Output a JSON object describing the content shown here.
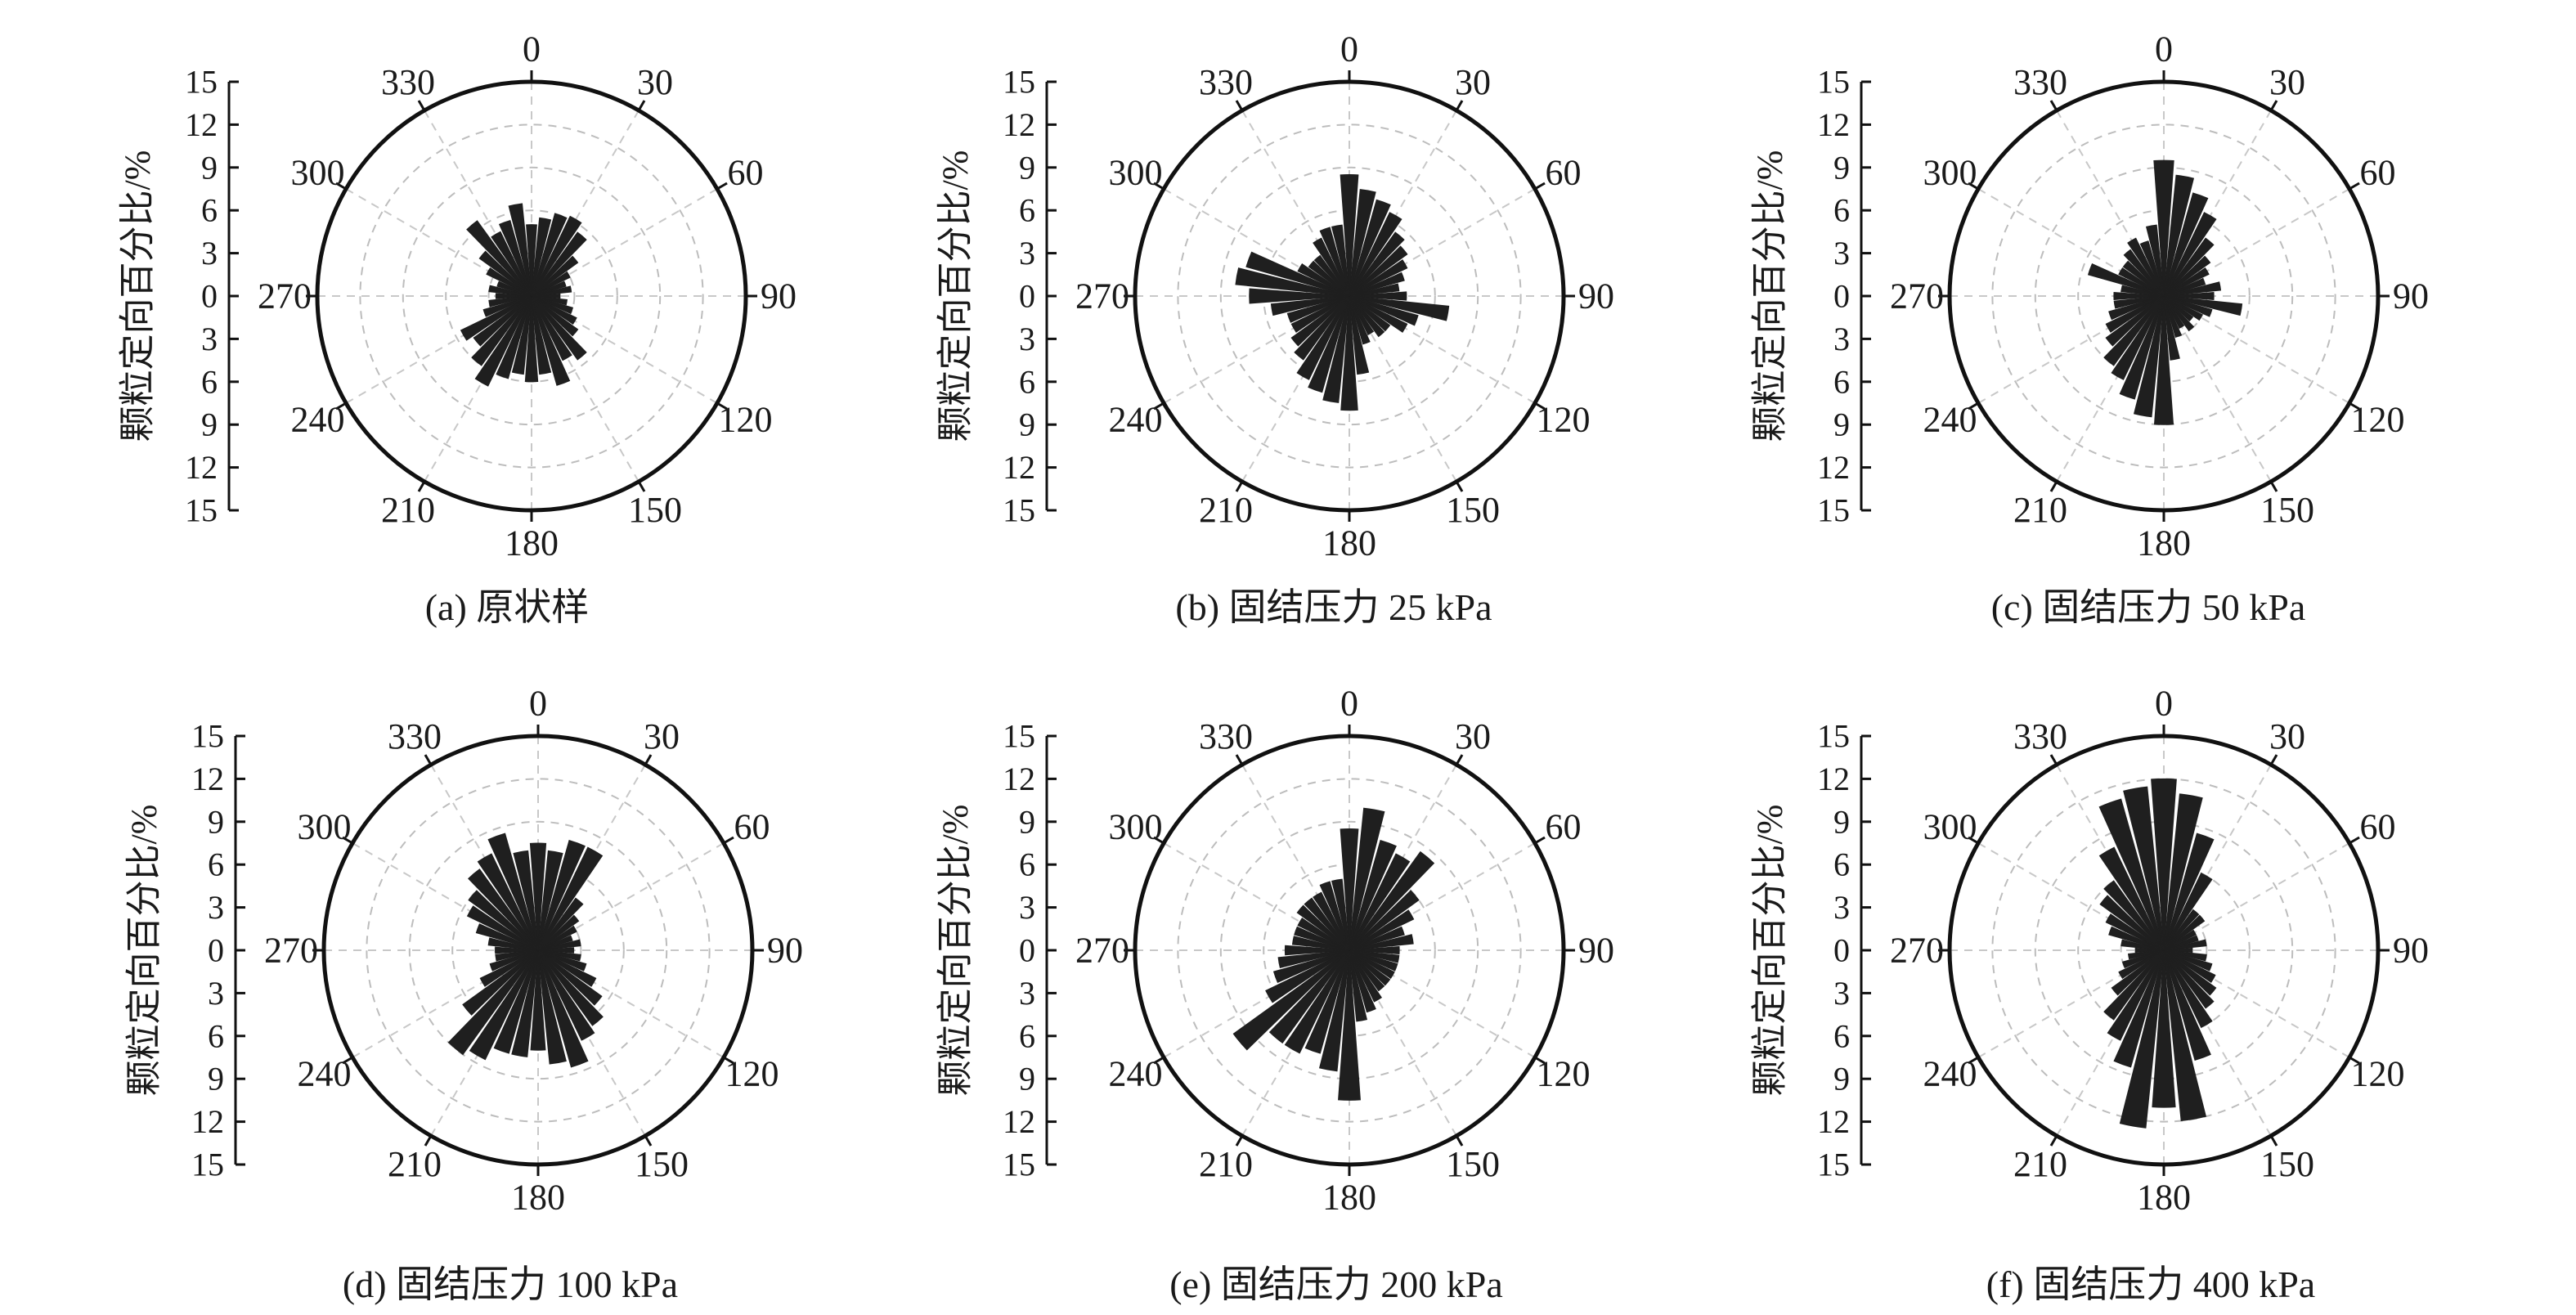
{
  "chart_data": [
    {
      "type": "polar-bar",
      "caption": "(a) 原状样",
      "ylabel": "颗粒定向百分比/%",
      "radial_ticks": [
        "15",
        "12",
        "9",
        "6",
        "3",
        "0",
        "3",
        "6",
        "9",
        "12",
        "15"
      ],
      "rmax": 15,
      "angle_labels": [
        "0",
        "30",
        "60",
        "90",
        "120",
        "150",
        "180",
        "210",
        "240",
        "270",
        "300",
        "330"
      ],
      "bin_width_deg": 10,
      "angles": [
        0,
        10,
        20,
        30,
        40,
        50,
        60,
        70,
        80,
        90,
        100,
        110,
        120,
        130,
        140,
        150,
        160,
        170,
        180,
        190,
        200,
        210,
        220,
        230,
        240,
        250,
        260,
        270,
        280,
        290,
        300,
        310,
        320,
        330,
        340,
        350
      ],
      "values": [
        5.0,
        5.5,
        6.0,
        6.2,
        5.5,
        4.0,
        3.0,
        2.5,
        2.8,
        2.0,
        2.5,
        3.0,
        3.5,
        4.0,
        5.5,
        5.0,
        6.5,
        5.5,
        6.0,
        5.5,
        6.0,
        7.0,
        6.0,
        5.0,
        5.5,
        3.5,
        3.0,
        2.5,
        3.0,
        2.5,
        3.5,
        4.5,
        6.5,
        5.0,
        5.5,
        6.5
      ]
    },
    {
      "type": "polar-bar",
      "caption": "(b) 固结压力 25 kPa",
      "ylabel": "颗粒定向百分比/%",
      "radial_ticks": [
        "15",
        "12",
        "9",
        "6",
        "3",
        "0",
        "3",
        "6",
        "9",
        "12",
        "15"
      ],
      "rmax": 15,
      "angle_labels": [
        "0",
        "30",
        "60",
        "90",
        "120",
        "150",
        "180",
        "210",
        "240",
        "270",
        "300",
        "330"
      ],
      "bin_width_deg": 10,
      "angles": [
        0,
        10,
        20,
        30,
        40,
        50,
        60,
        70,
        80,
        90,
        100,
        110,
        120,
        130,
        140,
        150,
        160,
        170,
        180,
        190,
        200,
        210,
        220,
        230,
        240,
        250,
        260,
        270,
        280,
        290,
        300,
        310,
        320,
        330,
        340,
        350
      ],
      "values": [
        8.5,
        7.5,
        7.0,
        6.5,
        5.5,
        5.0,
        4.5,
        4.0,
        3.5,
        4.0,
        7.0,
        5.0,
        4.5,
        3.5,
        3.5,
        3.0,
        3.5,
        5.5,
        8.0,
        7.5,
        7.0,
        6.5,
        5.5,
        5.0,
        4.5,
        4.5,
        5.5,
        7.0,
        8.0,
        7.5,
        4.0,
        3.5,
        3.5,
        4.5,
        5.0,
        5.0
      ]
    },
    {
      "type": "polar-bar",
      "caption": "(c) 固结压力 50 kPa",
      "ylabel": "颗粒定向百分比/%",
      "radial_ticks": [
        "15",
        "12",
        "9",
        "6",
        "3",
        "0",
        "3",
        "6",
        "9",
        "12",
        "15"
      ],
      "rmax": 15,
      "angle_labels": [
        "0",
        "30",
        "60",
        "90",
        "120",
        "150",
        "180",
        "210",
        "240",
        "270",
        "300",
        "330"
      ],
      "bin_width_deg": 10,
      "angles": [
        0,
        10,
        20,
        30,
        40,
        50,
        60,
        70,
        80,
        90,
        100,
        110,
        120,
        130,
        140,
        150,
        160,
        170,
        180,
        190,
        200,
        210,
        220,
        230,
        240,
        250,
        260,
        270,
        280,
        290,
        300,
        310,
        320,
        330,
        340,
        350
      ],
      "values": [
        9.5,
        8.5,
        7.5,
        6.5,
        5.0,
        4.0,
        3.5,
        3.0,
        4.0,
        3.5,
        5.5,
        3.5,
        3.0,
        2.5,
        3.0,
        2.5,
        3.0,
        4.5,
        9.0,
        8.5,
        7.5,
        6.5,
        6.0,
        5.0,
        4.5,
        4.0,
        3.5,
        3.5,
        3.0,
        5.5,
        3.5,
        3.5,
        4.0,
        4.5,
        4.0,
        5.0
      ]
    },
    {
      "type": "polar-bar",
      "caption": "(d) 固结压力 100 kPa",
      "ylabel": "颗粒定向百分比/%",
      "radial_ticks": [
        "15",
        "12",
        "9",
        "6",
        "3",
        "0",
        "3",
        "6",
        "9",
        "12",
        "15"
      ],
      "rmax": 15,
      "angle_labels": [
        "0",
        "30",
        "60",
        "90",
        "120",
        "150",
        "180",
        "210",
        "240",
        "270",
        "300",
        "330"
      ],
      "bin_width_deg": 10,
      "angles": [
        0,
        10,
        20,
        30,
        40,
        50,
        60,
        70,
        80,
        90,
        100,
        110,
        120,
        130,
        140,
        150,
        160,
        170,
        180,
        190,
        200,
        210,
        220,
        230,
        240,
        250,
        260,
        270,
        280,
        290,
        300,
        310,
        320,
        330,
        340,
        350
      ],
      "values": [
        7.5,
        7.0,
        8.0,
        8.0,
        4.5,
        3.5,
        3.0,
        2.5,
        3.0,
        2.5,
        3.0,
        3.5,
        4.5,
        5.5,
        6.5,
        7.0,
        8.5,
        8.0,
        7.0,
        7.5,
        7.5,
        8.5,
        9.0,
        6.5,
        4.5,
        3.5,
        3.0,
        3.0,
        3.5,
        4.5,
        5.5,
        6.0,
        7.0,
        7.5,
        8.5,
        7.0
      ]
    },
    {
      "type": "polar-bar",
      "caption": "(e) 固结压力 200 kPa",
      "ylabel": "颗粒定向百分比/%",
      "radial_ticks": [
        "15",
        "12",
        "9",
        "6",
        "3",
        "0",
        "3",
        "6",
        "9",
        "12",
        "15"
      ],
      "rmax": 15,
      "angle_labels": [
        "0",
        "30",
        "60",
        "90",
        "120",
        "150",
        "180",
        "210",
        "240",
        "270",
        "300",
        "330"
      ],
      "bin_width_deg": 10,
      "angles": [
        0,
        10,
        20,
        30,
        40,
        50,
        60,
        70,
        80,
        90,
        100,
        110,
        120,
        130,
        140,
        150,
        160,
        170,
        180,
        190,
        200,
        210,
        220,
        230,
        240,
        250,
        260,
        270,
        280,
        290,
        300,
        310,
        320,
        330,
        340,
        350
      ],
      "values": [
        8.5,
        10.0,
        8.0,
        7.5,
        8.5,
        6.0,
        5.0,
        4.0,
        4.5,
        3.5,
        3.5,
        3.5,
        3.5,
        3.5,
        3.5,
        4.0,
        4.5,
        5.0,
        10.5,
        8.5,
        7.5,
        8.0,
        8.0,
        10.0,
        6.5,
        5.5,
        5.0,
        4.5,
        4.0,
        4.0,
        4.0,
        4.5,
        4.5,
        4.5,
        5.0,
        5.0
      ]
    },
    {
      "type": "polar-bar",
      "caption": "(f) 固结压力 400 kPa",
      "ylabel": "颗粒定向百分比/%",
      "radial_ticks": [
        "15",
        "12",
        "9",
        "6",
        "3",
        "0",
        "3",
        "6",
        "9",
        "12",
        "15"
      ],
      "rmax": 15,
      "angle_labels": [
        "0",
        "30",
        "60",
        "90",
        "120",
        "150",
        "180",
        "210",
        "240",
        "270",
        "300",
        "330"
      ],
      "bin_width_deg": 10,
      "angles": [
        0,
        10,
        20,
        30,
        40,
        50,
        60,
        70,
        80,
        90,
        100,
        110,
        120,
        130,
        140,
        150,
        160,
        170,
        180,
        190,
        200,
        210,
        220,
        230,
        240,
        250,
        260,
        270,
        280,
        290,
        300,
        310,
        320,
        330,
        340,
        350
      ],
      "values": [
        12.0,
        11.0,
        8.5,
        6.0,
        3.5,
        3.5,
        2.5,
        2.5,
        3.0,
        2.0,
        3.0,
        3.5,
        4.0,
        4.5,
        5.0,
        6.0,
        8.0,
        12.0,
        11.0,
        12.5,
        8.5,
        7.0,
        6.0,
        4.5,
        3.5,
        3.0,
        2.5,
        2.0,
        3.0,
        4.0,
        4.5,
        5.5,
        6.0,
        8.0,
        11.0,
        11.5
      ]
    }
  ]
}
